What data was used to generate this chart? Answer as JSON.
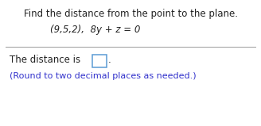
{
  "title": "Find the distance from the point to the plane.",
  "subtitle": "(9,5,2),  8y + z = 0",
  "answer_prefix": "The distance is",
  "answer_note": "(Round to two decimal places as needed.)",
  "bg_color": "#ffffff",
  "title_color": "#222222",
  "subtitle_color": "#222222",
  "answer_prefix_color": "#222222",
  "answer_note_color": "#3333cc",
  "box_edge_color": "#5b9bd5",
  "title_fontsize": 8.5,
  "subtitle_fontsize": 8.5,
  "answer_fontsize": 8.5,
  "note_fontsize": 8.0,
  "figsize": [
    3.28,
    1.59
  ],
  "dpi": 100
}
